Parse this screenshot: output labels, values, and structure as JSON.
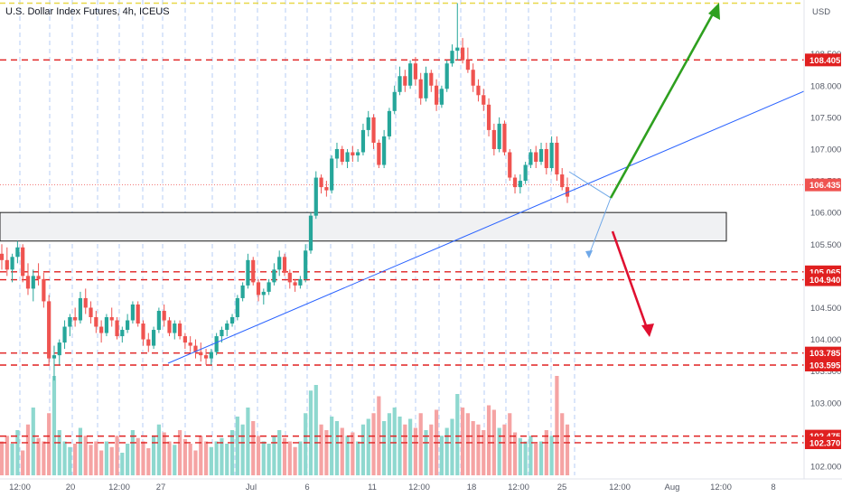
{
  "header": {
    "title": "U.S. Dollar Index Futures, 4h, ICEUS",
    "currency": "USD"
  },
  "colors": {
    "up": "#26a69a",
    "down": "#ef5350",
    "level_line": "#e02020",
    "trendline": "#2962ff",
    "target_up": "#2ea01f",
    "target_down": "#e01030",
    "zone_fill": "#f0f1f3",
    "yellow_line": "#e8d84a",
    "grid_vertical": "#5b8fe8"
  },
  "chart_data": {
    "type": "candlestick",
    "instrument": "U.S. Dollar Index Futures",
    "timeframe": "4h",
    "exchange": "ICEUS",
    "y_axis": {
      "unit": "USD",
      "ticks": [
        "108.500",
        "108.000",
        "107.500",
        "107.000",
        "106.500",
        "106.000",
        "105.500",
        "105.000",
        "104.500",
        "104.000",
        "103.500",
        "103.000",
        "102.500",
        "102.000"
      ],
      "range": [
        101.8,
        109.35
      ]
    },
    "x_axis": {
      "ticks": [
        "12:00",
        "20",
        "12:00",
        "27",
        "Jul",
        "6",
        "11",
        "12:00",
        "18",
        "12:00",
        "25",
        "12:00",
        "Aug",
        "12:00",
        "8"
      ]
    },
    "price_tags": [
      {
        "label": "108.405",
        "value": 108.405
      },
      {
        "label": "105.065",
        "value": 105.065
      },
      {
        "label": "104.940",
        "value": 104.94
      },
      {
        "label": "103.785",
        "value": 103.785
      },
      {
        "label": "103.595",
        "value": 103.595
      },
      {
        "label": "102.475",
        "value": 102.475
      },
      {
        "label": "102.370",
        "value": 102.37
      }
    ],
    "current_price": {
      "label": "106.435",
      "value": 106.435
    },
    "highlight_zone": {
      "from": 105.55,
      "to": 106.0
    },
    "top_line_value": 109.3,
    "candles": [
      [
        105.35,
        105.5,
        105.1,
        105.25
      ],
      [
        105.25,
        105.45,
        105.0,
        105.1
      ],
      [
        105.1,
        105.35,
        104.9,
        105.3
      ],
      [
        105.3,
        105.55,
        105.2,
        105.45
      ],
      [
        105.45,
        105.5,
        104.9,
        105.0
      ],
      [
        105.0,
        105.2,
        104.7,
        104.8
      ],
      [
        104.8,
        105.1,
        104.6,
        105.0
      ],
      [
        105.0,
        105.2,
        104.85,
        104.95
      ],
      [
        104.95,
        105.05,
        104.5,
        104.6
      ],
      [
        104.6,
        104.7,
        103.6,
        103.7
      ],
      [
        103.7,
        103.9,
        103.35,
        103.75
      ],
      [
        103.75,
        104.0,
        103.6,
        103.95
      ],
      [
        103.95,
        104.3,
        103.85,
        104.2
      ],
      [
        104.2,
        104.4,
        104.05,
        104.35
      ],
      [
        104.35,
        104.5,
        104.2,
        104.3
      ],
      [
        104.3,
        104.75,
        104.25,
        104.65
      ],
      [
        104.65,
        104.8,
        104.4,
        104.5
      ],
      [
        104.5,
        104.6,
        104.25,
        104.35
      ],
      [
        104.35,
        104.45,
        104.1,
        104.2
      ],
      [
        104.2,
        104.3,
        103.95,
        104.1
      ],
      [
        104.1,
        104.4,
        104.05,
        104.35
      ],
      [
        104.35,
        104.5,
        104.2,
        104.3
      ],
      [
        104.3,
        104.35,
        104.0,
        104.05
      ],
      [
        104.05,
        104.2,
        103.95,
        104.15
      ],
      [
        104.15,
        104.4,
        104.1,
        104.3
      ],
      [
        104.3,
        104.6,
        104.25,
        104.55
      ],
      [
        104.55,
        104.6,
        104.2,
        104.25
      ],
      [
        104.25,
        104.3,
        103.9,
        104.0
      ],
      [
        104.0,
        104.1,
        103.8,
        103.9
      ],
      [
        103.9,
        104.2,
        103.85,
        104.15
      ],
      [
        104.15,
        104.5,
        104.1,
        104.45
      ],
      [
        104.45,
        104.55,
        104.2,
        104.3
      ],
      [
        104.3,
        104.35,
        104.05,
        104.1
      ],
      [
        104.1,
        104.3,
        104.0,
        104.25
      ],
      [
        104.25,
        104.3,
        104.0,
        104.05
      ],
      [
        104.05,
        104.1,
        103.85,
        103.95
      ],
      [
        103.95,
        104.05,
        103.8,
        103.9
      ],
      [
        103.9,
        104.0,
        103.7,
        103.8
      ],
      [
        103.8,
        103.95,
        103.65,
        103.75
      ],
      [
        103.75,
        103.85,
        103.6,
        103.7
      ],
      [
        103.7,
        103.85,
        103.6,
        103.8
      ],
      [
        103.8,
        104.1,
        103.75,
        104.05
      ],
      [
        104.05,
        104.2,
        103.95,
        104.15
      ],
      [
        104.15,
        104.3,
        104.05,
        104.25
      ],
      [
        104.25,
        104.4,
        104.2,
        104.35
      ],
      [
        104.35,
        104.7,
        104.3,
        104.65
      ],
      [
        104.65,
        104.9,
        104.6,
        104.85
      ],
      [
        104.85,
        105.35,
        104.8,
        105.25
      ],
      [
        105.25,
        105.3,
        104.85,
        104.9
      ],
      [
        104.9,
        104.95,
        104.6,
        104.7
      ],
      [
        104.7,
        104.8,
        104.55,
        104.75
      ],
      [
        104.75,
        104.95,
        104.7,
        104.9
      ],
      [
        104.9,
        105.2,
        104.85,
        105.1
      ],
      [
        105.1,
        105.4,
        105.0,
        105.3
      ],
      [
        105.3,
        105.35,
        105.0,
        105.05
      ],
      [
        105.05,
        105.1,
        104.8,
        104.9
      ],
      [
        104.9,
        104.95,
        104.75,
        104.85
      ],
      [
        104.85,
        105.0,
        104.8,
        104.95
      ],
      [
        104.95,
        105.5,
        104.9,
        105.4
      ],
      [
        105.4,
        106.0,
        105.35,
        105.95
      ],
      [
        105.95,
        106.65,
        105.9,
        106.55
      ],
      [
        106.55,
        106.6,
        106.3,
        106.4
      ],
      [
        106.4,
        106.5,
        106.25,
        106.35
      ],
      [
        106.35,
        106.9,
        106.3,
        106.85
      ],
      [
        106.85,
        107.1,
        106.7,
        107.0
      ],
      [
        107.0,
        107.05,
        106.75,
        106.8
      ],
      [
        106.8,
        107.0,
        106.7,
        106.95
      ],
      [
        106.95,
        107.05,
        106.8,
        106.9
      ],
      [
        106.9,
        107.0,
        106.8,
        106.95
      ],
      [
        106.95,
        107.4,
        106.9,
        107.3
      ],
      [
        107.3,
        107.6,
        107.2,
        107.5
      ],
      [
        107.5,
        107.55,
        107.0,
        107.1
      ],
      [
        107.1,
        107.15,
        106.7,
        106.75
      ],
      [
        106.75,
        107.3,
        106.7,
        107.2
      ],
      [
        107.2,
        107.65,
        107.15,
        107.6
      ],
      [
        107.6,
        108.0,
        107.55,
        107.9
      ],
      [
        107.9,
        108.3,
        107.85,
        108.15
      ],
      [
        108.15,
        108.25,
        107.9,
        108.0
      ],
      [
        108.0,
        108.4,
        107.95,
        108.35
      ],
      [
        108.35,
        108.45,
        108.0,
        108.1
      ],
      [
        108.1,
        108.2,
        107.7,
        107.8
      ],
      [
        107.8,
        108.3,
        107.75,
        108.2
      ],
      [
        108.2,
        108.25,
        107.9,
        108.0
      ],
      [
        108.0,
        108.1,
        107.6,
        107.7
      ],
      [
        107.7,
        108.0,
        107.65,
        107.95
      ],
      [
        107.95,
        108.4,
        107.9,
        108.35
      ],
      [
        108.35,
        108.65,
        108.3,
        108.55
      ],
      [
        108.55,
        109.3,
        108.4,
        108.6
      ],
      [
        108.6,
        108.75,
        108.35,
        108.4
      ],
      [
        108.4,
        108.6,
        108.2,
        108.25
      ],
      [
        108.25,
        108.35,
        107.9,
        108.0
      ],
      [
        108.0,
        108.1,
        107.75,
        107.85
      ],
      [
        107.85,
        107.95,
        107.6,
        107.7
      ],
      [
        107.7,
        107.8,
        107.2,
        107.3
      ],
      [
        107.3,
        107.4,
        106.9,
        107.0
      ],
      [
        107.0,
        107.5,
        106.95,
        107.4
      ],
      [
        107.4,
        107.45,
        106.9,
        106.95
      ],
      [
        106.95,
        107.0,
        106.5,
        106.55
      ],
      [
        106.55,
        106.6,
        106.3,
        106.4
      ],
      [
        106.4,
        106.6,
        106.3,
        106.5
      ],
      [
        106.5,
        106.8,
        106.45,
        106.75
      ],
      [
        106.75,
        107.0,
        106.7,
        106.95
      ],
      [
        106.95,
        107.05,
        106.7,
        106.8
      ],
      [
        106.8,
        107.1,
        106.75,
        107.0
      ],
      [
        107.0,
        107.1,
        106.6,
        106.7
      ],
      [
        106.7,
        107.2,
        106.65,
        107.1
      ],
      [
        107.1,
        107.2,
        106.5,
        106.6
      ],
      [
        106.6,
        106.7,
        106.35,
        106.4
      ],
      [
        106.4,
        106.55,
        106.15,
        106.25
      ]
    ],
    "volumes": [
      0.3,
      0.35,
      0.28,
      0.4,
      0.22,
      0.45,
      0.6,
      0.33,
      0.3,
      0.55,
      0.88,
      0.4,
      0.3,
      0.25,
      0.28,
      0.42,
      0.35,
      0.27,
      0.3,
      0.22,
      0.3,
      0.25,
      0.35,
      0.2,
      0.28,
      0.4,
      0.33,
      0.3,
      0.24,
      0.35,
      0.45,
      0.38,
      0.3,
      0.27,
      0.4,
      0.32,
      0.28,
      0.22,
      0.35,
      0.3,
      0.25,
      0.3,
      0.33,
      0.28,
      0.4,
      0.52,
      0.45,
      0.6,
      0.48,
      0.35,
      0.3,
      0.28,
      0.35,
      0.4,
      0.33,
      0.3,
      0.25,
      0.3,
      0.55,
      0.75,
      0.8,
      0.45,
      0.4,
      0.52,
      0.48,
      0.42,
      0.35,
      0.38,
      0.3,
      0.45,
      0.5,
      0.55,
      0.7,
      0.48,
      0.55,
      0.6,
      0.52,
      0.45,
      0.5,
      0.42,
      0.55,
      0.4,
      0.45,
      0.58,
      0.35,
      0.42,
      0.5,
      0.72,
      0.6,
      0.55,
      0.48,
      0.45,
      0.4,
      0.62,
      0.58,
      0.42,
      0.45,
      0.55,
      0.38,
      0.33,
      0.3,
      0.35,
      0.28,
      0.3,
      0.4,
      0.35,
      0.88,
      0.55,
      0.45
    ]
  }
}
